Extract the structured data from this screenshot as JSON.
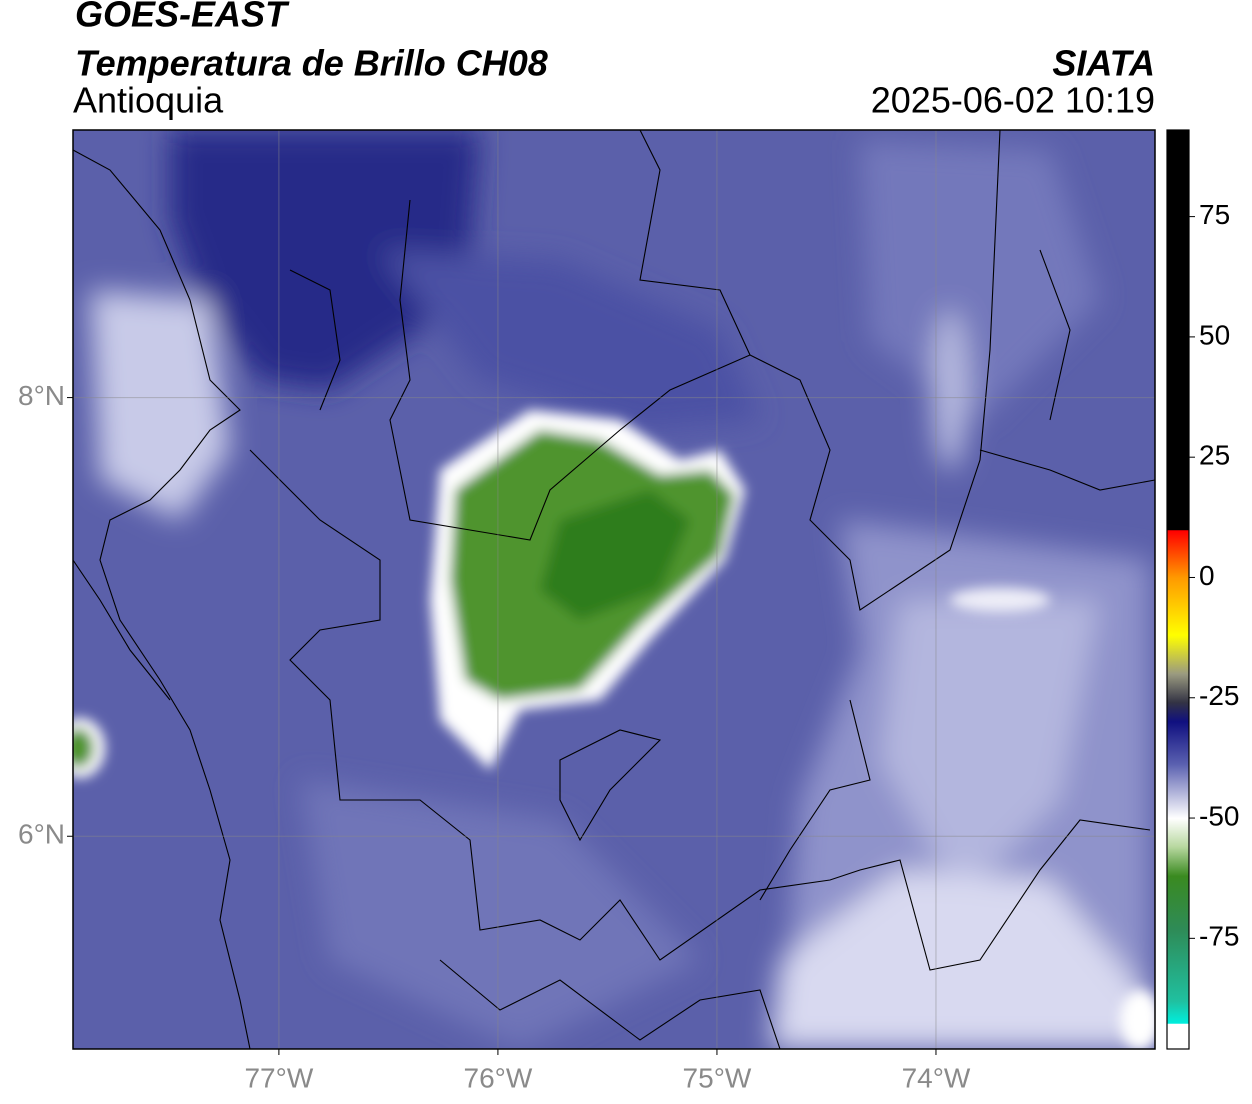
{
  "header": {
    "title": "GOES-EAST",
    "subtitle": "Temperatura de Brillo CH08",
    "region": "Antioquia",
    "agency": "SIATA",
    "datetime": "2025-06-02 10:19"
  },
  "map": {
    "lon_range": [
      -77.94,
      -73.0
    ],
    "lat_range": [
      5.03,
      9.22
    ],
    "lon_ticks": [
      {
        "value": -77,
        "label": "77°W"
      },
      {
        "value": -76,
        "label": "76°W"
      },
      {
        "value": -75,
        "label": "75°W"
      },
      {
        "value": -74,
        "label": "74°W"
      }
    ],
    "lat_ticks": [
      {
        "value": 8,
        "label": "8°N"
      },
      {
        "value": 6,
        "label": "6°N"
      }
    ],
    "grid": true
  },
  "colorbar": {
    "range": [
      -98,
      93
    ],
    "ticks": [
      75,
      50,
      25,
      0,
      -25,
      -50,
      -75
    ]
  }
}
